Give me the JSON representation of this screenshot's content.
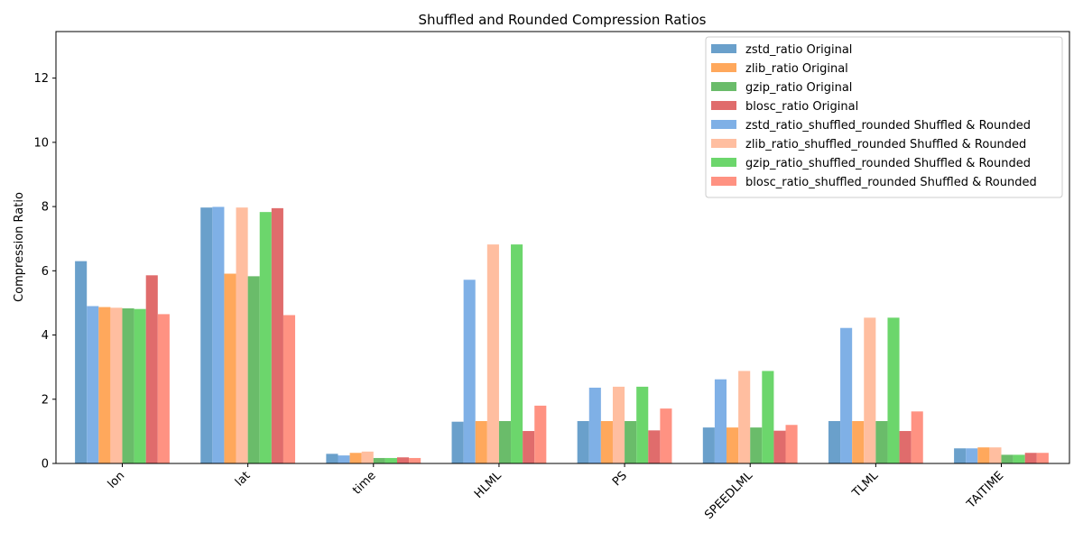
{
  "chart_data": {
    "type": "bar",
    "title": "Shuffled and Rounded Compression Ratios",
    "xlabel": "",
    "ylabel": "Compression Ratio",
    "ylim": [
      0,
      13.45
    ],
    "yticks": [
      0,
      2,
      4,
      6,
      8,
      10,
      12
    ],
    "grid": false,
    "legend_position": "top-right",
    "categories": [
      "lon",
      "lat",
      "time",
      "HLML",
      "PS",
      "SPEEDLML",
      "TLML",
      "TAITIME"
    ],
    "series": [
      {
        "name": "zstd_ratio Original",
        "color": "#6aa0cb",
        "values": [
          6.3,
          7.97,
          0.3,
          1.3,
          1.32,
          1.12,
          1.32,
          0.47
        ]
      },
      {
        "name": "zstd_ratio_shuffled_rounded Shuffled & Rounded",
        "color": "#7fb0e6",
        "values": [
          4.9,
          7.99,
          0.25,
          5.72,
          2.36,
          2.62,
          4.22,
          0.47
        ]
      },
      {
        "name": "zlib_ratio Original",
        "color": "#ffa85c",
        "values": [
          4.87,
          5.91,
          0.33,
          1.32,
          1.32,
          1.12,
          1.32,
          0.5
        ]
      },
      {
        "name": "zlib_ratio_shuffled_rounded Shuffled & Rounded",
        "color": "#ffbea0",
        "values": [
          4.85,
          7.97,
          0.37,
          6.82,
          2.39,
          2.88,
          4.54,
          0.5
        ]
      },
      {
        "name": "gzip_ratio Original",
        "color": "#6abc6a",
        "values": [
          4.83,
          5.83,
          0.17,
          1.32,
          1.32,
          1.12,
          1.32,
          0.27
        ]
      },
      {
        "name": "gzip_ratio_shuffled_rounded Shuffled & Rounded",
        "color": "#6cd66c",
        "values": [
          4.81,
          7.83,
          0.17,
          6.82,
          2.39,
          2.88,
          4.54,
          0.27
        ]
      },
      {
        "name": "blosc_ratio Original",
        "color": "#e06c6c",
        "values": [
          5.86,
          7.95,
          0.19,
          1.01,
          1.03,
          1.02,
          1.01,
          0.33
        ]
      },
      {
        "name": "blosc_ratio_shuffled_rounded Shuffled & Rounded",
        "color": "#ff9282",
        "values": [
          4.65,
          4.62,
          0.17,
          1.8,
          1.71,
          1.2,
          1.62,
          0.33
        ]
      }
    ],
    "legend_order": [
      0,
      2,
      4,
      6,
      1,
      3,
      5,
      7
    ]
  }
}
